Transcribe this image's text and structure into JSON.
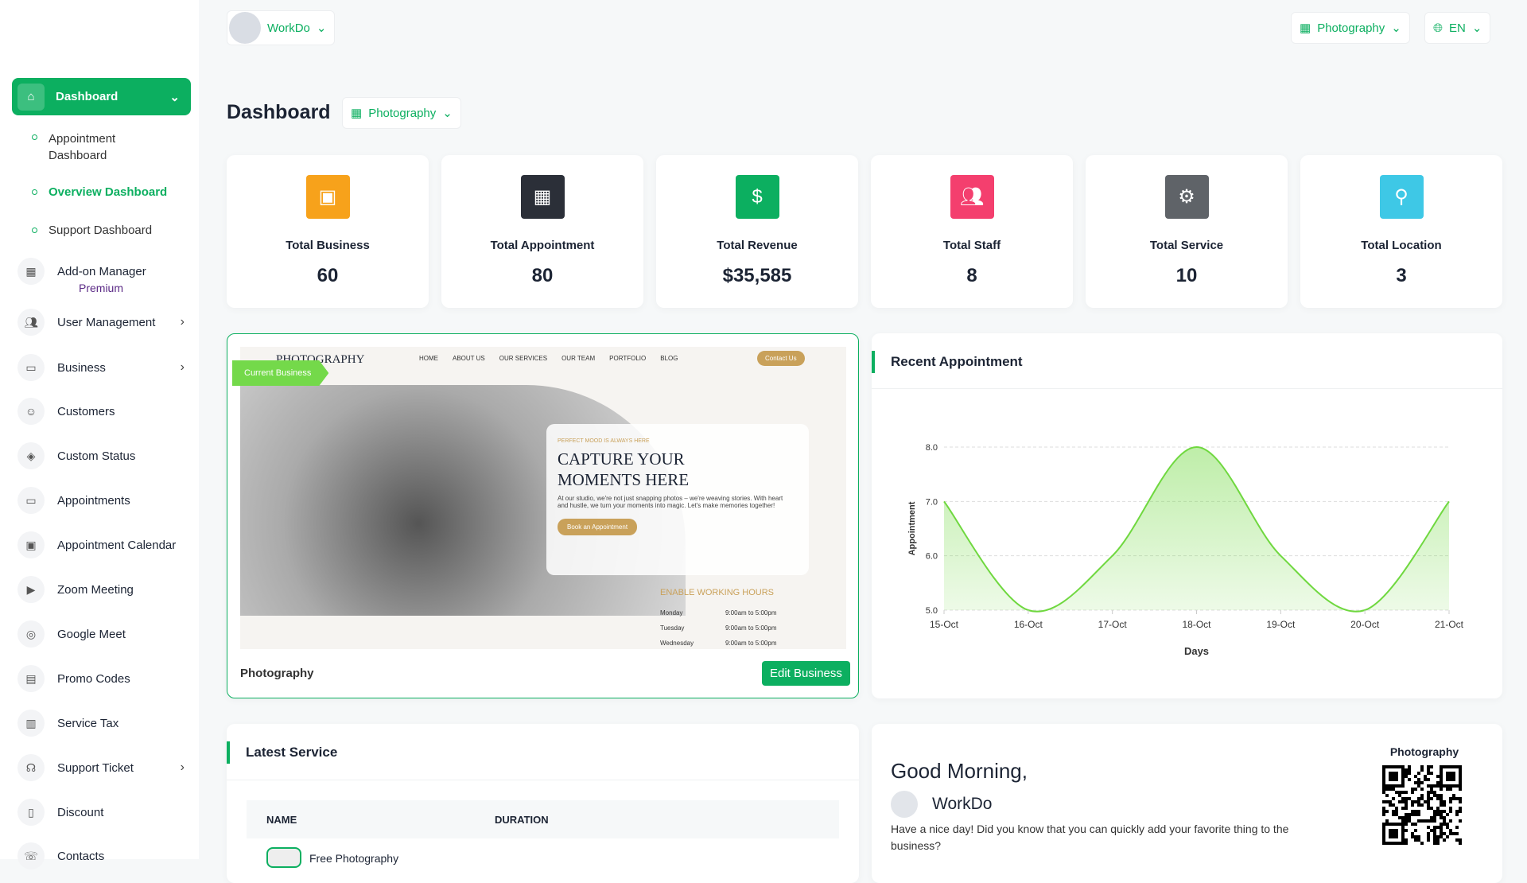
{
  "header": {
    "user": "WorkDo",
    "business_select": "Photography",
    "language": "EN"
  },
  "sidebar": {
    "dashboard": "Dashboard",
    "submenu": [
      "Appointment Dashboard",
      "Overview Dashboard",
      "Support Dashboard"
    ],
    "items": [
      {
        "label": "Add-on Manager",
        "badge": "Premium",
        "icon": "grid-icon"
      },
      {
        "label": "User Management",
        "icon": "users-icon",
        "chevron": true
      },
      {
        "label": "Business",
        "icon": "business-icon",
        "chevron": true
      },
      {
        "label": "Customers",
        "icon": "user-icon"
      },
      {
        "label": "Custom Status",
        "icon": "tag-icon"
      },
      {
        "label": "Appointments",
        "icon": "card-icon"
      },
      {
        "label": "Appointment Calendar",
        "icon": "calendar-icon"
      },
      {
        "label": "Zoom Meeting",
        "icon": "video-icon"
      },
      {
        "label": "Google Meet",
        "icon": "meet-icon"
      },
      {
        "label": "Promo Codes",
        "icon": "ticket-icon"
      },
      {
        "label": "Service Tax",
        "icon": "receipt-icon"
      },
      {
        "label": "Support Ticket",
        "icon": "headset-icon",
        "chevron": true
      },
      {
        "label": "Discount",
        "icon": "bookmark-icon"
      },
      {
        "label": "Contacts",
        "icon": "phone-icon"
      }
    ]
  },
  "page": {
    "title": "Dashboard",
    "business_filter": "Photography"
  },
  "stats": [
    {
      "label": "Total Business",
      "value": "60",
      "color": "#f7a21b",
      "icon": "briefcase-icon"
    },
    {
      "label": "Total Appointment",
      "value": "80",
      "color": "#2b2f38",
      "icon": "calendar-icon"
    },
    {
      "label": "Total Revenue",
      "value": "$35,585",
      "color": "#0caf60",
      "icon": "revenue-icon"
    },
    {
      "label": "Total Staff",
      "value": "8",
      "color": "#f43f6e",
      "icon": "staff-icon"
    },
    {
      "label": "Total Service",
      "value": "10",
      "color": "#5f6368",
      "icon": "service-icon"
    },
    {
      "label": "Total Location",
      "value": "3",
      "color": "#3ec8e6",
      "icon": "location-icon"
    }
  ],
  "business_card": {
    "badge": "Current Business",
    "name": "Photography",
    "edit": "Edit Business",
    "preview": {
      "logo": "PHOTOGRAPHY",
      "nav": [
        "HOME",
        "ABOUT US",
        "OUR SERVICES",
        "OUR TEAM",
        "PORTFOLIO",
        "BLOG"
      ],
      "contact": "Contact Us",
      "tag": "PERFECT MOOD IS ALWAYS HERE",
      "headline": "CAPTURE YOUR MOMENTS HERE",
      "body": "At our studio, we're not just snapping photos – we're weaving stories. With heart and hustle, we turn your moments into magic. Let's make memories together!",
      "cta": "Book an Appointment",
      "hours_title": "ENABLE WORKING HOURS",
      "hours": [
        [
          "Monday",
          "9:00am to 5:00pm"
        ],
        [
          "Tuesday",
          "9:00am to 5:00pm"
        ],
        [
          "Wednesday",
          "9:00am to 5:00pm"
        ]
      ]
    }
  },
  "recent_appointment": {
    "title": "Recent Appointment"
  },
  "chart_data": {
    "type": "area",
    "x": [
      "15-Oct",
      "16-Oct",
      "17-Oct",
      "18-Oct",
      "19-Oct",
      "20-Oct",
      "21-Oct"
    ],
    "values": [
      7.0,
      5.0,
      6.0,
      8.0,
      6.0,
      5.0,
      7.0
    ],
    "xlabel": "Days",
    "ylabel": "Appointment",
    "yticks": [
      "5.0",
      "6.0",
      "7.0",
      "8.0"
    ],
    "ylim": [
      5,
      8
    ],
    "grid": true,
    "color": "#6fd83f"
  },
  "latest_service": {
    "title": "Latest Service",
    "columns": [
      "NAME",
      "DURATION"
    ],
    "rows": [
      {
        "name": "Free Photography"
      }
    ]
  },
  "greeting": {
    "title": "Good Morning,",
    "user": "WorkDo",
    "text": "Have a nice day! Did you know that you can quickly add your favorite thing to the business?",
    "qr_label": "Photography"
  },
  "colors": {
    "accent": "#0caf60"
  }
}
